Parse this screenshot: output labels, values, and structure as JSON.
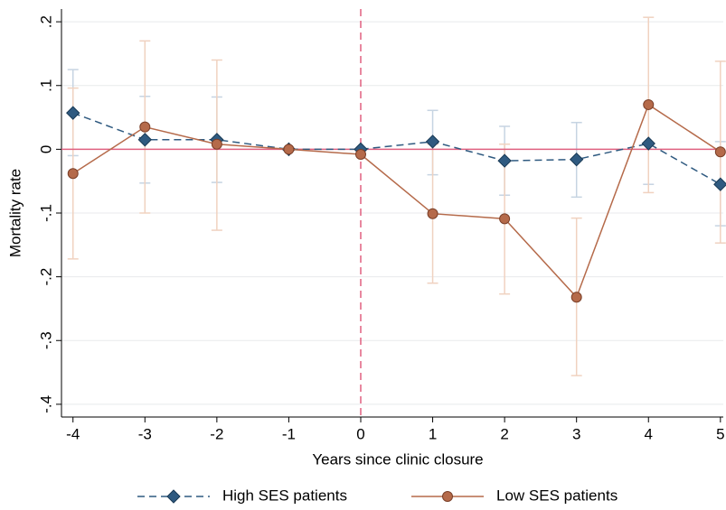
{
  "chart_data": {
    "type": "line",
    "xlabel": "Years since clinic closure",
    "ylabel": "Mortality rate",
    "x": [
      -4,
      -3,
      -2,
      -1,
      0,
      1,
      2,
      3,
      4,
      5
    ],
    "xlim": [
      -4.16,
      5.04
    ],
    "xticks": [
      -4,
      -3,
      -2,
      -1,
      0,
      1,
      2,
      3,
      4,
      5
    ],
    "ylim": [
      -0.42,
      0.22
    ],
    "yticks": [
      {
        "value": 0.2,
        "label": ".2"
      },
      {
        "value": 0.1,
        "label": ".1"
      },
      0,
      {
        "value": -0.1,
        "label": "-.1"
      },
      {
        "value": -0.2,
        "label": "-.2"
      },
      {
        "value": -0.3,
        "label": "-.3"
      },
      {
        "value": -0.4,
        "label": "-.4"
      }
    ],
    "grid": true,
    "hline": 0,
    "vline": 0,
    "legend": "bottom",
    "series": [
      {
        "name": "High SES patients",
        "color": "#2f5a80",
        "marker": "diamond",
        "dash": true,
        "error_color": "#c6d4e2",
        "values": [
          0.057,
          0.015,
          0.015,
          0,
          0,
          0.012,
          -0.018,
          -0.016,
          0.009,
          -0.055
        ],
        "lower": [
          -0.01,
          -0.053,
          -0.052,
          null,
          null,
          -0.04,
          -0.072,
          -0.075,
          -0.055,
          -0.12
        ],
        "upper": [
          0.125,
          0.083,
          0.082,
          null,
          null,
          0.061,
          0.036,
          0.042,
          0.072,
          0.012
        ]
      },
      {
        "name": "Low SES patients",
        "color": "#b56a4a",
        "marker": "circle",
        "dash": false,
        "error_color": "#f0d2c0",
        "values": [
          -0.038,
          0.035,
          0.008,
          0,
          -0.008,
          -0.101,
          -0.109,
          -0.232,
          0.07,
          -0.004
        ],
        "lower": [
          -0.172,
          -0.1,
          -0.127,
          null,
          null,
          -0.21,
          -0.227,
          -0.355,
          -0.068,
          -0.147
        ],
        "upper": [
          0.096,
          0.17,
          0.14,
          null,
          null,
          0.008,
          0.008,
          -0.108,
          0.207,
          0.138
        ]
      }
    ]
  }
}
